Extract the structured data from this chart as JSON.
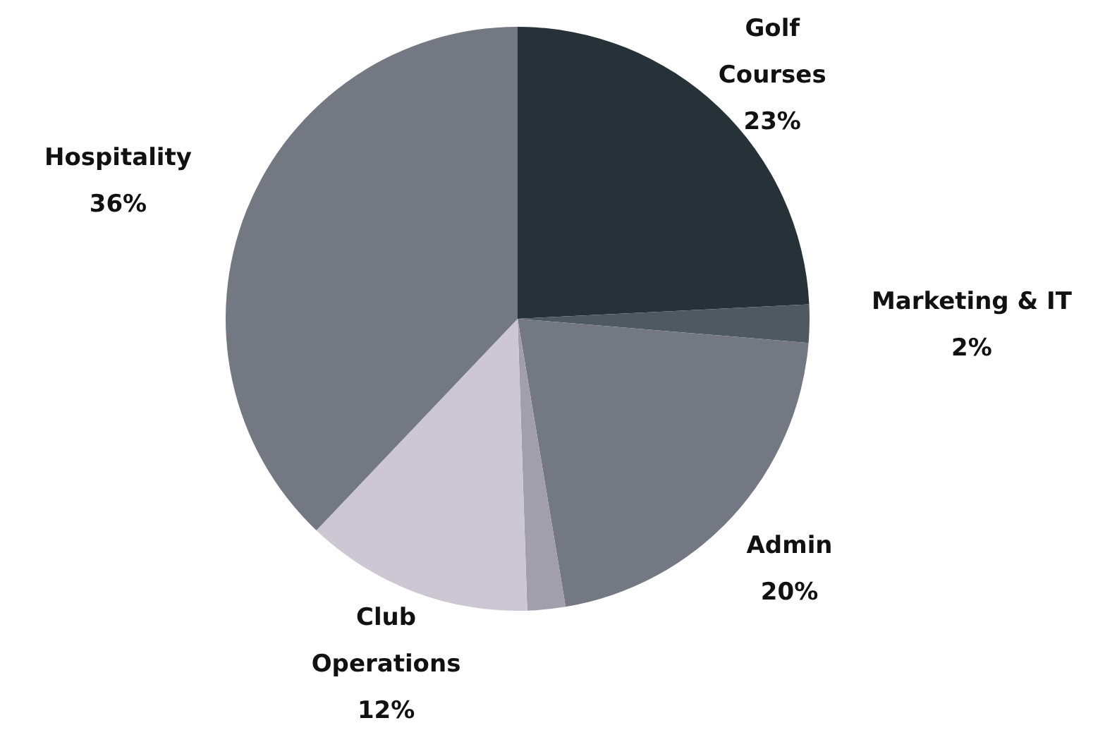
{
  "chart_data": {
    "type": "pie",
    "categories": [
      "Golf Courses",
      "Marketing & IT",
      "Admin",
      null,
      "Club Operations",
      "Hospitality"
    ],
    "values": [
      23,
      2,
      20,
      2,
      12,
      36
    ],
    "value_labels": [
      "23%",
      "2%",
      "20%",
      null,
      "12%",
      "36%"
    ],
    "colors": [
      "#263238",
      "#4f5961",
      "#737883",
      "#a19fab",
      "#cdc6d3",
      "#737883"
    ]
  }
}
